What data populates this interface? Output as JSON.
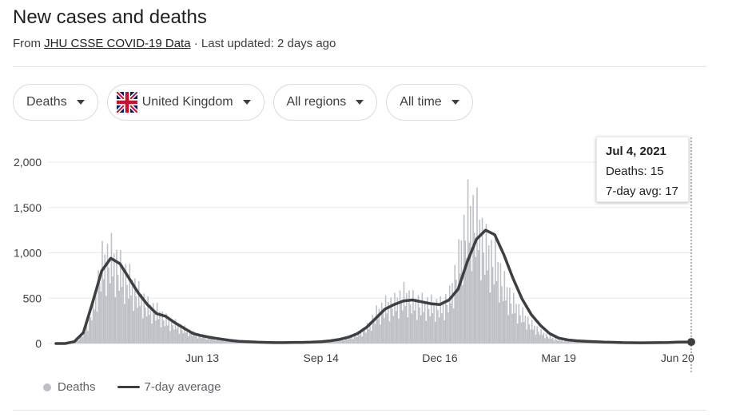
{
  "header": {
    "title": "New cases and deaths",
    "from_label": "From",
    "source": "JHU CSSE COVID-19 Data",
    "updated": "· Last updated: 2 days ago"
  },
  "filters": {
    "metric": "Deaths",
    "country": "United Kingdom",
    "region": "All regions",
    "time": "All time"
  },
  "colors": {
    "bars": "#bdc1c6",
    "avg_line": "#3c4043",
    "grid": "#e8eaed"
  },
  "tooltip": {
    "date": "Jul 4, 2021",
    "deaths": "Deaths: 15",
    "avg": "7-day avg: 17"
  },
  "legend": {
    "bars": "Deaths",
    "line": "7-day average"
  },
  "chart_data": {
    "type": "bar",
    "title": "",
    "xlabel": "",
    "ylabel": "",
    "ylim": [
      0,
      2000
    ],
    "yticks": [
      0,
      500,
      1000,
      1500,
      2000
    ],
    "ytick_labels": [
      "0",
      "500",
      "1,000",
      "1,500",
      "2,000"
    ],
    "xticks": [
      {
        "label": "Jun 13",
        "week": 16
      },
      {
        "label": "Sep 14",
        "week": 29
      },
      {
        "label": "Dec 16",
        "week": 42
      },
      {
        "label": "Mar 19",
        "week": 55
      },
      {
        "label": "Jun 20",
        "week": 68
      }
    ],
    "x_units": "weeks since Mar 1, 2020",
    "series": [
      {
        "name": "7-day average",
        "x": [
          0,
          1,
          2,
          3,
          4,
          5,
          6,
          7,
          8,
          9,
          10,
          11,
          12,
          13,
          14,
          15,
          16,
          17,
          18,
          19,
          20,
          21,
          22,
          23,
          24,
          25,
          26,
          27,
          28,
          29,
          30,
          31,
          32,
          33,
          34,
          35,
          36,
          37,
          38,
          39,
          40,
          41,
          42,
          43,
          44,
          45,
          46,
          47,
          48,
          49,
          50,
          51,
          52,
          53,
          54,
          55,
          56,
          57,
          58,
          59,
          60,
          61,
          62,
          63,
          64,
          65,
          66,
          67,
          68,
          69.5
        ],
        "values": [
          0,
          0,
          20,
          120,
          450,
          800,
          940,
          880,
          720,
          560,
          430,
          330,
          300,
          230,
          170,
          110,
          85,
          65,
          50,
          35,
          25,
          20,
          15,
          12,
          10,
          10,
          12,
          12,
          15,
          20,
          30,
          45,
          70,
          110,
          180,
          280,
          380,
          430,
          470,
          480,
          460,
          440,
          430,
          480,
          600,
          900,
          1150,
          1250,
          1200,
          980,
          720,
          490,
          320,
          200,
          110,
          60,
          40,
          30,
          25,
          20,
          15,
          13,
          10,
          9,
          8,
          9,
          10,
          11,
          15,
          17
        ]
      },
      {
        "name": "Deaths",
        "x": [
          0,
          1,
          2,
          3,
          4,
          5,
          6,
          7,
          8,
          9,
          10,
          11,
          12,
          13,
          14,
          15,
          16,
          17,
          18,
          19,
          20,
          21,
          22,
          23,
          24,
          25,
          26,
          27,
          28,
          29,
          30,
          31,
          32,
          33,
          34,
          35,
          36,
          37,
          38,
          39,
          40,
          41,
          42,
          43,
          44,
          45,
          46,
          47,
          48,
          49,
          50,
          51,
          52,
          53,
          54,
          55,
          56,
          57,
          58,
          59,
          60,
          61,
          62,
          63,
          64,
          65,
          66,
          67,
          68,
          69
        ],
        "values": [
          0,
          2,
          30,
          150,
          520,
          1130,
          1220,
          1030,
          880,
          690,
          520,
          450,
          330,
          270,
          200,
          140,
          105,
          85,
          60,
          45,
          32,
          25,
          18,
          15,
          13,
          12,
          14,
          15,
          18,
          25,
          36,
          55,
          85,
          135,
          230,
          420,
          530,
          560,
          680,
          590,
          560,
          540,
          520,
          640,
          1150,
          1810,
          1720,
          1320,
          1160,
          800,
          560,
          400,
          260,
          160,
          90,
          50,
          35,
          28,
          24,
          18,
          14,
          12,
          10,
          8,
          8,
          9,
          10,
          12,
          16,
          15
        ]
      }
    ]
  }
}
